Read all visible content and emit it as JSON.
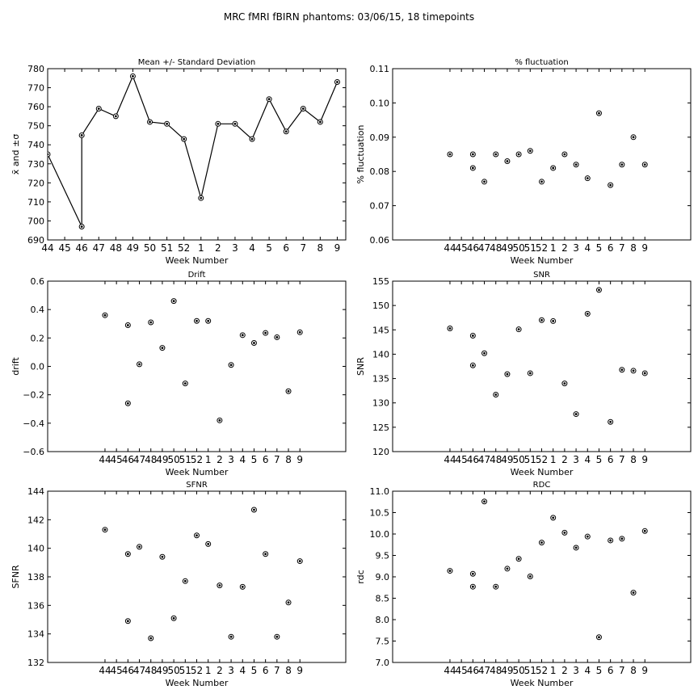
{
  "suptitle": "MRC fMRI fBIRN phantoms: 03/06/15, 18 timepoints",
  "chart_data": [
    {
      "id": "mean",
      "type": "line",
      "title": "Mean +/- Standard Deviation",
      "xlabel": "Week Number",
      "ylabel": "x̄ and ±σ",
      "x_ticks": [
        "44",
        "45",
        "46",
        "47",
        "48",
        "49",
        "50",
        "51",
        "52",
        "1",
        "2",
        "3",
        "4",
        "5",
        "6",
        "7",
        "8",
        "9"
      ],
      "xlim": [
        0,
        17.5
      ],
      "ylim": [
        690,
        780
      ],
      "y_ticks": [
        690,
        700,
        710,
        720,
        730,
        740,
        750,
        760,
        770,
        780
      ],
      "x": [
        0,
        2,
        2,
        3,
        4,
        5,
        6,
        7,
        8,
        9,
        10,
        11,
        12,
        13,
        14,
        15,
        16,
        17
      ],
      "values": [
        735,
        697,
        745,
        759,
        755,
        776,
        752,
        751,
        743,
        712,
        751,
        751,
        743,
        764,
        747,
        759,
        752,
        773
      ],
      "color": "#000000"
    },
    {
      "id": "fluct",
      "type": "scatter",
      "title": "% fluctuation",
      "xlabel": "Week Number",
      "ylabel": "% fluctuation",
      "x_ticks": [
        "44",
        "45",
        "46",
        "47",
        "48",
        "49",
        "50",
        "51",
        "52",
        "1",
        "2",
        "3",
        "4",
        "5",
        "6",
        "7",
        "8",
        "9"
      ],
      "xlim": [
        -5,
        21
      ],
      "ylim": [
        0.06,
        0.11
      ],
      "y_ticks": [
        "0.06",
        "0.07",
        "0.08",
        "0.09",
        "0.10",
        "0.11"
      ],
      "x": [
        0,
        2,
        2,
        3,
        4,
        5,
        6,
        7,
        8,
        9,
        10,
        11,
        12,
        13,
        14,
        15,
        16,
        17
      ],
      "values": [
        0.085,
        0.085,
        0.081,
        0.077,
        0.085,
        0.083,
        0.085,
        0.086,
        0.077,
        0.081,
        0.085,
        0.082,
        0.078,
        0.097,
        0.076,
        0.082,
        0.09,
        0.082
      ],
      "color": "#000000"
    },
    {
      "id": "drift",
      "type": "scatter",
      "title": "Drift",
      "xlabel": "Week Number",
      "ylabel": "drift",
      "x_ticks": [
        "44",
        "45",
        "46",
        "47",
        "48",
        "49",
        "50",
        "51",
        "52",
        "1",
        "2",
        "3",
        "4",
        "5",
        "6",
        "7",
        "8",
        "9"
      ],
      "xlim": [
        -5,
        21
      ],
      "ylim": [
        -0.6,
        0.6
      ],
      "y_ticks": [
        "−0.6",
        "−0.4",
        "−0.2",
        "0.0",
        "0.2",
        "0.4",
        "0.6"
      ],
      "x": [
        0,
        2,
        2,
        3,
        4,
        5,
        6,
        7,
        8,
        9,
        10,
        11,
        12,
        13,
        14,
        15,
        16,
        17
      ],
      "values": [
        0.36,
        -0.26,
        0.29,
        0.015,
        0.31,
        0.13,
        0.46,
        -0.12,
        0.32,
        0.32,
        -0.38,
        0.01,
        0.22,
        0.165,
        0.235,
        0.205,
        -0.175,
        0.24
      ],
      "color": "#000000"
    },
    {
      "id": "snr",
      "type": "scatter",
      "title": "SNR",
      "xlabel": "Week Number",
      "ylabel": "SNR",
      "x_ticks": [
        "44",
        "45",
        "46",
        "47",
        "48",
        "49",
        "50",
        "51",
        "52",
        "1",
        "2",
        "3",
        "4",
        "5",
        "6",
        "7",
        "8",
        "9"
      ],
      "xlim": [
        -5,
        21
      ],
      "ylim": [
        120,
        155
      ],
      "y_ticks": [
        "120",
        "125",
        "130",
        "135",
        "140",
        "145",
        "150",
        "155"
      ],
      "x": [
        0,
        2,
        2,
        3,
        4,
        5,
        6,
        7,
        8,
        9,
        10,
        11,
        12,
        13,
        14,
        15,
        16,
        17
      ],
      "values": [
        145.3,
        137.7,
        143.8,
        140.2,
        131.7,
        135.9,
        145.1,
        136.1,
        147.0,
        146.8,
        134.0,
        127.7,
        148.3,
        153.2,
        126.1,
        136.8,
        136.6,
        136.1
      ],
      "color": "#000000"
    },
    {
      "id": "sfnr",
      "type": "scatter",
      "title": "SFNR",
      "xlabel": "Week Number",
      "ylabel": "SFNR",
      "x_ticks": [
        "44",
        "45",
        "46",
        "47",
        "48",
        "49",
        "50",
        "51",
        "52",
        "1",
        "2",
        "3",
        "4",
        "5",
        "6",
        "7",
        "8",
        "9"
      ],
      "xlim": [
        -5,
        21
      ],
      "ylim": [
        132,
        144
      ],
      "y_ticks": [
        "132",
        "134",
        "136",
        "138",
        "140",
        "142",
        "144"
      ],
      "x": [
        0,
        2,
        2,
        3,
        4,
        5,
        6,
        7,
        8,
        9,
        10,
        11,
        12,
        13,
        14,
        15,
        16,
        17
      ],
      "values": [
        141.3,
        134.9,
        139.6,
        140.1,
        133.7,
        139.4,
        135.1,
        137.7,
        140.9,
        140.3,
        137.4,
        133.8,
        137.3,
        142.7,
        139.6,
        133.8,
        136.2,
        139.1
      ],
      "color": "#000000"
    },
    {
      "id": "rdc",
      "type": "scatter",
      "title": "RDC",
      "xlabel": "Week Number",
      "ylabel": "rdc",
      "x_ticks": [
        "44",
        "45",
        "46",
        "47",
        "48",
        "49",
        "50",
        "51",
        "52",
        "1",
        "2",
        "3",
        "4",
        "5",
        "6",
        "7",
        "8",
        "9"
      ],
      "xlim": [
        -5,
        21
      ],
      "ylim": [
        7.0,
        11.0
      ],
      "y_ticks": [
        "7.0",
        "7.5",
        "8.0",
        "8.5",
        "9.0",
        "9.5",
        "10.0",
        "10.5",
        "11.0"
      ],
      "x": [
        0,
        2,
        2,
        3,
        4,
        5,
        6,
        7,
        8,
        9,
        10,
        11,
        12,
        13,
        14,
        15,
        16,
        17
      ],
      "values": [
        9.14,
        8.77,
        9.07,
        10.76,
        8.77,
        9.19,
        9.42,
        9.01,
        9.8,
        10.38,
        10.03,
        9.68,
        9.94,
        7.59,
        9.85,
        9.89,
        8.63,
        10.07
      ],
      "color": "#000000"
    }
  ]
}
